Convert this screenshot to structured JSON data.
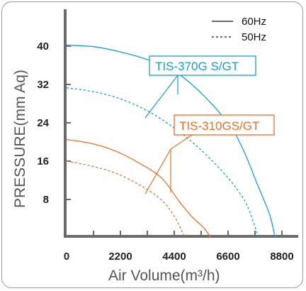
{
  "chart_data": {
    "type": "line",
    "xlabel": "Air Volume(m³/h)",
    "ylabel": "PRESSURE(mm Aq)",
    "xlim": [
      0,
      9000
    ],
    "ylim": [
      0,
      48
    ],
    "x_ticks": [
      0,
      2200,
      4400,
      6600,
      8800
    ],
    "y_ticks": [
      8,
      16,
      24,
      32,
      40
    ],
    "grid": false,
    "legend": {
      "position": "top-right",
      "entries": [
        {
          "label": "60Hz",
          "style": "solid"
        },
        {
          "label": "50Hz",
          "style": "dashed"
        }
      ]
    },
    "annotations": [
      {
        "text": "TIS-370G  S/GT",
        "color": "#1a9ad6"
      },
      {
        "text": "TIS-310GS/GT",
        "color": "#e8712a"
      }
    ],
    "series": [
      {
        "model": "TIS-370G S/GT",
        "freq": "60Hz",
        "dash": false,
        "color": "#1a9ad6",
        "points": [
          [
            0,
            40.2
          ],
          [
            1100,
            39.9
          ],
          [
            2200,
            38.8
          ],
          [
            3300,
            37.2
          ],
          [
            4400,
            34.8
          ],
          [
            5500,
            30.2
          ],
          [
            6600,
            23.9
          ],
          [
            7200,
            18.6
          ],
          [
            7800,
            11.1
          ],
          [
            8300,
            4.8
          ],
          [
            8520,
            0
          ]
        ]
      },
      {
        "model": "TIS-370G S/GT",
        "freq": "50Hz",
        "dash": true,
        "color": "#1a9ad6",
        "points": [
          [
            0,
            31.3
          ],
          [
            1100,
            30.5
          ],
          [
            2200,
            29.0
          ],
          [
            3300,
            26.5
          ],
          [
            4400,
            22.9
          ],
          [
            5500,
            18.3
          ],
          [
            6600,
            12.5
          ],
          [
            7300,
            7.5
          ],
          [
            7650,
            3.0
          ],
          [
            7850,
            0
          ]
        ]
      },
      {
        "model": "TIS-310GS/GT",
        "freq": "60Hz",
        "dash": false,
        "color": "#e8712a",
        "points": [
          [
            0,
            20.5
          ],
          [
            1000,
            19.7
          ],
          [
            2000,
            18.1
          ],
          [
            3000,
            15.5
          ],
          [
            3900,
            12.4
          ],
          [
            4600,
            7.6
          ],
          [
            5100,
            4.5
          ],
          [
            5600,
            2.1
          ],
          [
            5900,
            0
          ]
        ]
      },
      {
        "model": "TIS-310GS/GT",
        "freq": "50Hz",
        "dash": true,
        "color": "#e8712a",
        "points": [
          [
            0,
            16.0
          ],
          [
            1000,
            15.0
          ],
          [
            2000,
            13.5
          ],
          [
            3000,
            11.0
          ],
          [
            3900,
            7.8
          ],
          [
            4400,
            4.5
          ],
          [
            4700,
            1.5
          ],
          [
            4850,
            0
          ]
        ]
      }
    ]
  }
}
